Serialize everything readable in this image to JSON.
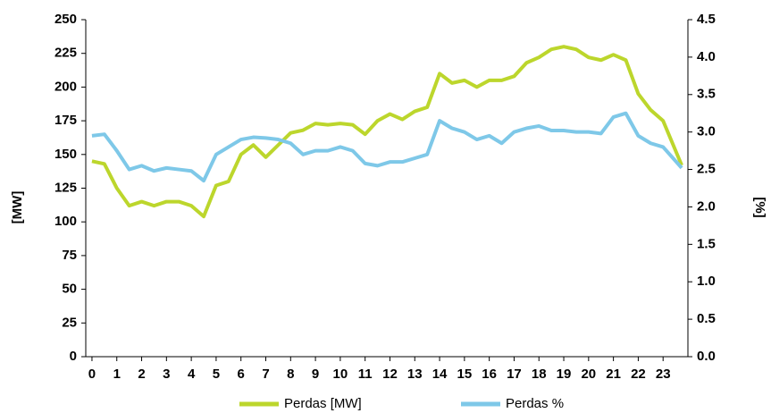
{
  "chart_data": {
    "type": "line",
    "y_label": "[MW]",
    "y2_label": "[%]",
    "x": [
      0,
      0.5,
      1,
      1.5,
      2,
      2.5,
      3,
      3.5,
      4,
      4.5,
      5,
      5.5,
      6,
      6.5,
      7,
      7.5,
      8,
      8.5,
      9,
      9.5,
      10,
      10.5,
      11,
      11.5,
      12,
      12.5,
      13,
      13.5,
      14,
      14.5,
      15,
      15.5,
      16,
      16.5,
      17,
      17.5,
      18,
      18.5,
      19,
      19.5,
      20,
      20.5,
      21,
      21.5,
      22,
      22.5,
      23,
      23.75
    ],
    "series": [
      {
        "name": "Perdas [MW]",
        "color": "#bcd62c",
        "axis": "y",
        "values": [
          145,
          143,
          125,
          112,
          115,
          112,
          115,
          115,
          112,
          104,
          127,
          130,
          150,
          157,
          148,
          157,
          166,
          168,
          173,
          172,
          173,
          172,
          165,
          175,
          180,
          176,
          182,
          185,
          210,
          203,
          205,
          200,
          205,
          205,
          208,
          218,
          222,
          228,
          230,
          228,
          222,
          220,
          224,
          220,
          195,
          183,
          175,
          142
        ]
      },
      {
        "name": "Perdas %",
        "color": "#7ec8e8",
        "axis": "y2",
        "values": [
          2.95,
          2.97,
          2.75,
          2.5,
          2.55,
          2.48,
          2.52,
          2.5,
          2.48,
          2.35,
          2.7,
          2.8,
          2.9,
          2.93,
          2.92,
          2.9,
          2.85,
          2.7,
          2.75,
          2.75,
          2.8,
          2.75,
          2.58,
          2.55,
          2.6,
          2.6,
          2.65,
          2.7,
          3.15,
          3.05,
          3.0,
          2.9,
          2.95,
          2.85,
          3.0,
          3.05,
          3.08,
          3.02,
          3.02,
          3.0,
          3.0,
          2.98,
          3.2,
          3.25,
          2.95,
          2.85,
          2.8,
          2.52
        ]
      }
    ],
    "xlim": [
      -0.25,
      24
    ],
    "xticks": [
      0,
      1,
      2,
      3,
      4,
      5,
      6,
      7,
      8,
      9,
      10,
      11,
      12,
      13,
      14,
      15,
      16,
      17,
      18,
      19,
      20,
      21,
      22,
      23
    ],
    "ylim": [
      0,
      250
    ],
    "yticks": [
      0,
      25,
      50,
      75,
      100,
      125,
      150,
      175,
      200,
      225,
      250
    ],
    "y2lim": [
      0,
      4.5
    ],
    "y2ticks": [
      {
        "value": 0,
        "label": "0.0"
      },
      {
        "value": 0.5,
        "label": "0.5"
      },
      {
        "value": 1,
        "label": "1.0"
      },
      {
        "value": 1.5,
        "label": "1.5"
      },
      {
        "value": 2,
        "label": "2.0"
      },
      {
        "value": 2.5,
        "label": "2.5"
      },
      {
        "value": 3,
        "label": "3.0"
      },
      {
        "value": 3.5,
        "label": "3.5"
      },
      {
        "value": 4,
        "label": "4.0"
      },
      {
        "value": 4.5,
        "label": "4.5"
      }
    ],
    "grid": false,
    "legend": "bottom"
  }
}
